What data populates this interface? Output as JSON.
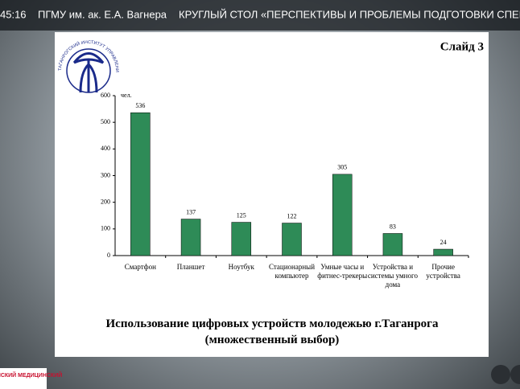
{
  "header": {
    "time": "45:16",
    "organizer": "ПГМУ им. ак. Е.А. Вагнера",
    "event": "КРУГЛЫЙ СТОЛ «ПЕРСПЕКТИВЫ И ПРОБЛЕМЫ ПОДГОТОВКИ СПЕЦ"
  },
  "slide": {
    "label": "Слайд 3",
    "logo_text": "ТАГАНРОГСКИЙ ИНСТИТУТ УПРАВЛЕНИЯ И ЭКОНОМИКИ"
  },
  "chart_data": {
    "type": "bar",
    "title": "Использование цифровых устройств молодежью г.Таганрога (множественный выбор)",
    "y_unit": "чел.",
    "categories": [
      "Смартфон",
      "Планшет",
      "Ноутбук",
      "Стационарный компьютер",
      "Умные часы и фитнес-трекеры",
      "Устройства и системы умного дома",
      "Прочие устройства"
    ],
    "values": [
      536,
      137,
      125,
      122,
      305,
      83,
      24
    ],
    "color": "#2e8b57",
    "ylim": [
      0,
      600
    ],
    "yticks": [
      0,
      100,
      200,
      300,
      400,
      500,
      600
    ],
    "grid": false
  },
  "footer": {
    "logo": "ПЕРМСКИЙ МЕДИЦИНСКИЙ"
  }
}
